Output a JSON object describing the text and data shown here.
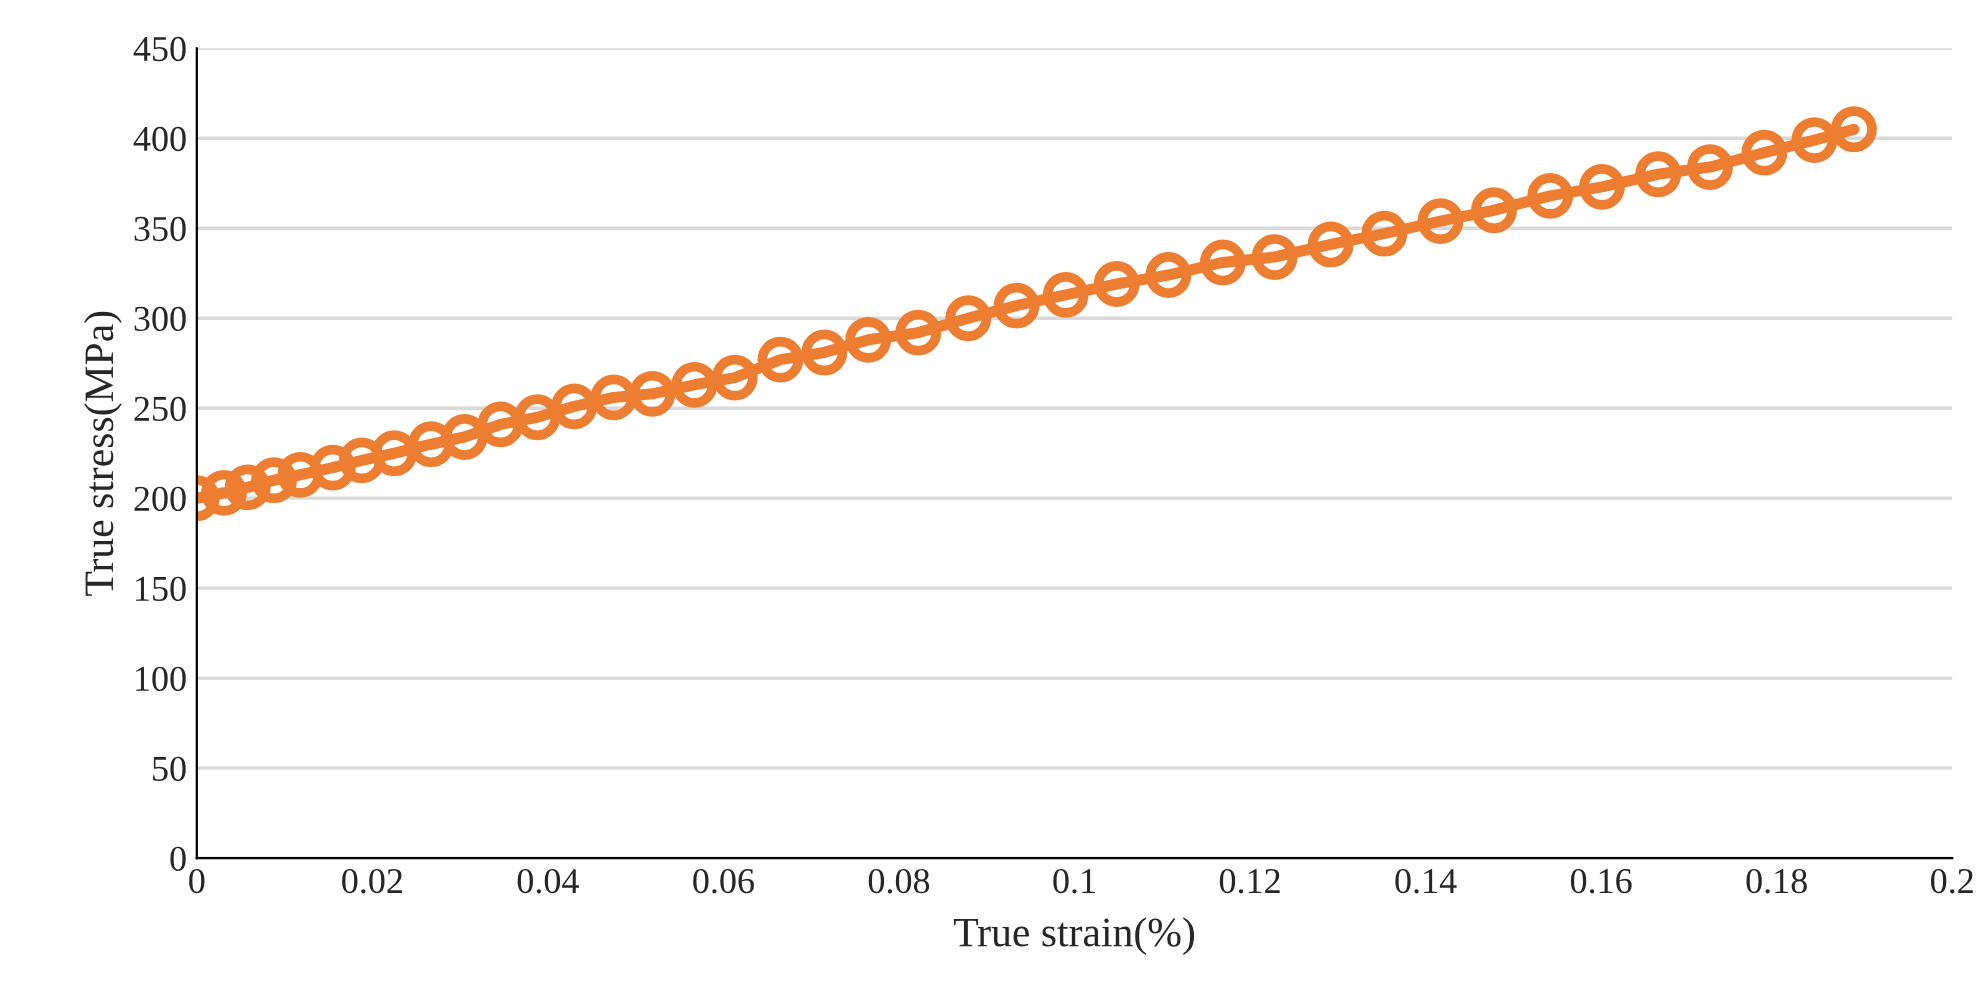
{
  "chart_data": {
    "type": "line",
    "xlabel": "True strain(%)",
    "ylabel": "True stress(MPa)",
    "x": [
      0,
      0.0031,
      0.0058,
      0.0088,
      0.0118,
      0.0155,
      0.0188,
      0.0225,
      0.0267,
      0.0305,
      0.0346,
      0.0388,
      0.043,
      0.0475,
      0.0519,
      0.0567,
      0.0613,
      0.0665,
      0.0715,
      0.0765,
      0.0822,
      0.0879,
      0.0934,
      0.099,
      0.1048,
      0.1107,
      0.1169,
      0.1228,
      0.1292,
      0.1353,
      0.1417,
      0.1478,
      0.1542,
      0.1601,
      0.1665,
      0.1724,
      0.1786,
      0.1843,
      0.1888
    ],
    "series": [
      {
        "color": "#ed7d31",
        "values": [
          200,
          203,
          206,
          210,
          213,
          217,
          221,
          225,
          230,
          234,
          241,
          245,
          251,
          256,
          258,
          263,
          267,
          277,
          281,
          288,
          292,
          300,
          307,
          313,
          319,
          324,
          331,
          334,
          341,
          347,
          354,
          360,
          368,
          373,
          380,
          384,
          392,
          399,
          405
        ]
      }
    ],
    "xlim": [
      0,
      0.2
    ],
    "xticks": [
      0,
      0.02,
      0.04,
      0.06,
      0.08,
      0.1,
      0.12,
      0.14,
      0.16,
      0.18,
      0.2
    ],
    "ylim": [
      0,
      450
    ],
    "yticks": [
      0,
      50,
      100,
      150,
      200,
      250,
      300,
      350,
      400,
      450
    ],
    "grid": "y",
    "marker": "circle",
    "line_style": "solid"
  }
}
